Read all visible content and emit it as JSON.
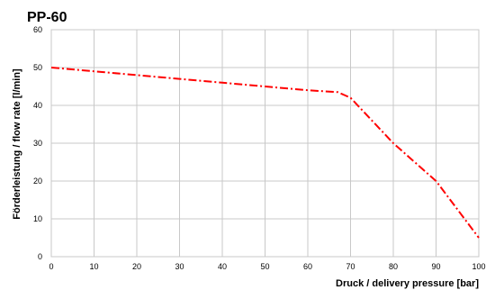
{
  "chart_data": {
    "type": "line",
    "title": "PP-60",
    "xlabel": "Druck / delivery pressure  [bar]",
    "ylabel": "Förderleistung  / flow rate [l/min]",
    "xlim": [
      0,
      100
    ],
    "ylim": [
      0,
      60
    ],
    "x_ticks": [
      "0",
      "10",
      "20",
      "30",
      "40",
      "50",
      "60",
      "70",
      "80",
      "90",
      "100"
    ],
    "y_ticks": [
      "0",
      "10",
      "20",
      "30",
      "40",
      "50",
      "60"
    ],
    "grid": true,
    "series": [
      {
        "line_style": "dash-dot",
        "color": "#ff0000",
        "x": [
          0,
          10,
          20,
          30,
          40,
          50,
          60,
          67,
          70,
          80,
          90,
          100
        ],
        "y": [
          50,
          49,
          48,
          47,
          46,
          45,
          44,
          43.5,
          42,
          30,
          20,
          5
        ]
      }
    ]
  }
}
